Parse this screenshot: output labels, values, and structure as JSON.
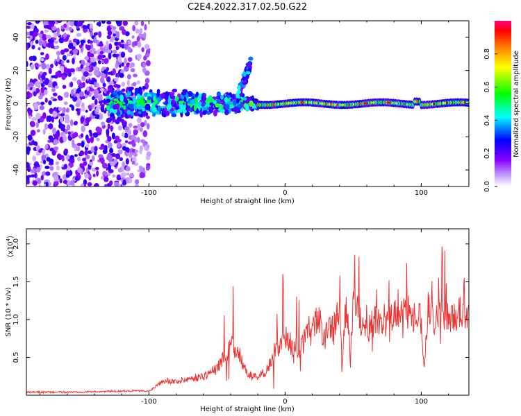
{
  "title": "C2E4.2022.317.02.50.G22",
  "chart_data": [
    {
      "type": "heatmap",
      "xlabel": "Height of straight line (km)",
      "ylabel": "Frequency (Hz)",
      "xlim": [
        -190,
        135
      ],
      "ylim": [
        -50,
        50
      ],
      "xticks": [
        -100,
        0,
        100
      ],
      "yticks": [
        -40,
        -20,
        0,
        20,
        40
      ],
      "colorbar": {
        "label": "Normalized spectral amplitude",
        "range": [
          0,
          1
        ],
        "ticks": [
          "0.0",
          "0.2",
          "0.4",
          "0.6",
          "0.8"
        ],
        "colormap": [
          "#ffffff",
          "#8a00ff",
          "#0000ff",
          "#00ffff",
          "#00ff00",
          "#ffff00",
          "#ff8000",
          "#ff0000",
          "#ff0080"
        ]
      },
      "regions": [
        {
          "x": [
            -190,
            -115
          ],
          "y": [
            -50,
            50
          ],
          "level": 0.25,
          "desc": "scattered noise"
        },
        {
          "x": [
            -115,
            -100
          ],
          "y": [
            -50,
            50
          ],
          "level": 0.1,
          "desc": "sparse noise"
        },
        {
          "x": [
            -130,
            -20
          ],
          "y": [
            -12,
            12
          ],
          "level": 0.5,
          "desc": "broad band"
        },
        {
          "x": [
            -35,
            -25
          ],
          "y": [
            5,
            25
          ],
          "level": 0.35,
          "desc": "upward branch"
        },
        {
          "x": [
            -20,
            135
          ],
          "y": [
            -3,
            3
          ],
          "level": 0.8,
          "desc": "narrow carrier line"
        }
      ]
    },
    {
      "type": "line",
      "xlabel": "Height of straight line (km)",
      "ylabel": "SNR (10 * v/v)",
      "y_multiplier": "(x10",
      "y_multiplier_exp": "4",
      "xlim": [
        -190,
        135
      ],
      "ylim": [
        0,
        2.2
      ],
      "xticks": [
        -100,
        0,
        100
      ],
      "yticks": [
        "0.5",
        "1.0",
        "1.5",
        "2.0"
      ],
      "color": "#ee3333",
      "series": [
        {
          "x": [
            -190,
            -160,
            -130,
            -110,
            -100,
            -95,
            -90,
            -80,
            -70,
            -60,
            -55,
            -50,
            -45,
            -40,
            -35,
            -30,
            -25,
            -20,
            -15,
            -10,
            -5,
            0,
            5,
            10,
            15,
            20,
            25,
            28,
            30,
            35,
            40,
            42,
            45,
            48,
            50,
            55,
            60,
            65,
            70,
            75,
            80,
            85,
            90,
            95,
            100,
            102,
            105,
            110,
            115,
            120,
            125,
            130,
            135
          ],
          "y": [
            0.04,
            0.04,
            0.05,
            0.06,
            0.05,
            0.12,
            0.2,
            0.18,
            0.22,
            0.25,
            0.3,
            0.35,
            0.5,
            0.65,
            0.6,
            0.35,
            0.25,
            0.25,
            0.3,
            0.45,
            0.65,
            0.8,
            0.65,
            0.6,
            0.75,
            0.85,
            1.05,
            0.7,
            0.8,
            0.9,
            1.1,
            0.5,
            1.2,
            0.45,
            1.3,
            1.0,
            0.85,
            0.95,
            1.05,
            0.95,
            1.1,
            1.05,
            1.1,
            1.05,
            1.1,
            0.35,
            1.15,
            1.0,
            1.1,
            1.05,
            1.05,
            1.1,
            1.12
          ]
        }
      ]
    }
  ]
}
